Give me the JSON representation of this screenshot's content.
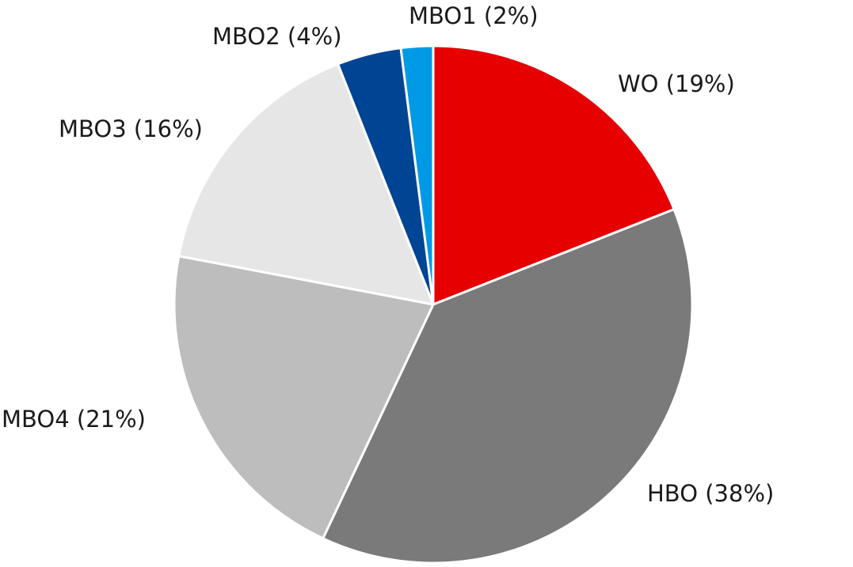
{
  "chart_data": {
    "type": "pie",
    "title": "",
    "start_angle_deg": 0,
    "direction": "clockwise",
    "slices": [
      {
        "label": "WO (19%)",
        "category": "WO",
        "value": 19,
        "color": "#e60000"
      },
      {
        "label": "HBO (38%)",
        "category": "HBO",
        "value": 38,
        "color": "#7a7a7a"
      },
      {
        "label": "MBO4 (21%)",
        "category": "MBO4",
        "value": 21,
        "color": "#bdbdbd"
      },
      {
        "label": "MBO3 (16%)",
        "category": "MBO3",
        "value": 16,
        "color": "#e6e6e6"
      },
      {
        "label": "MBO2 (4%)",
        "category": "MBO2",
        "value": 4,
        "color": "#004494"
      },
      {
        "label": "MBO1 (2%)",
        "category": "MBO1",
        "value": 2,
        "color": "#0099e6"
      }
    ]
  }
}
